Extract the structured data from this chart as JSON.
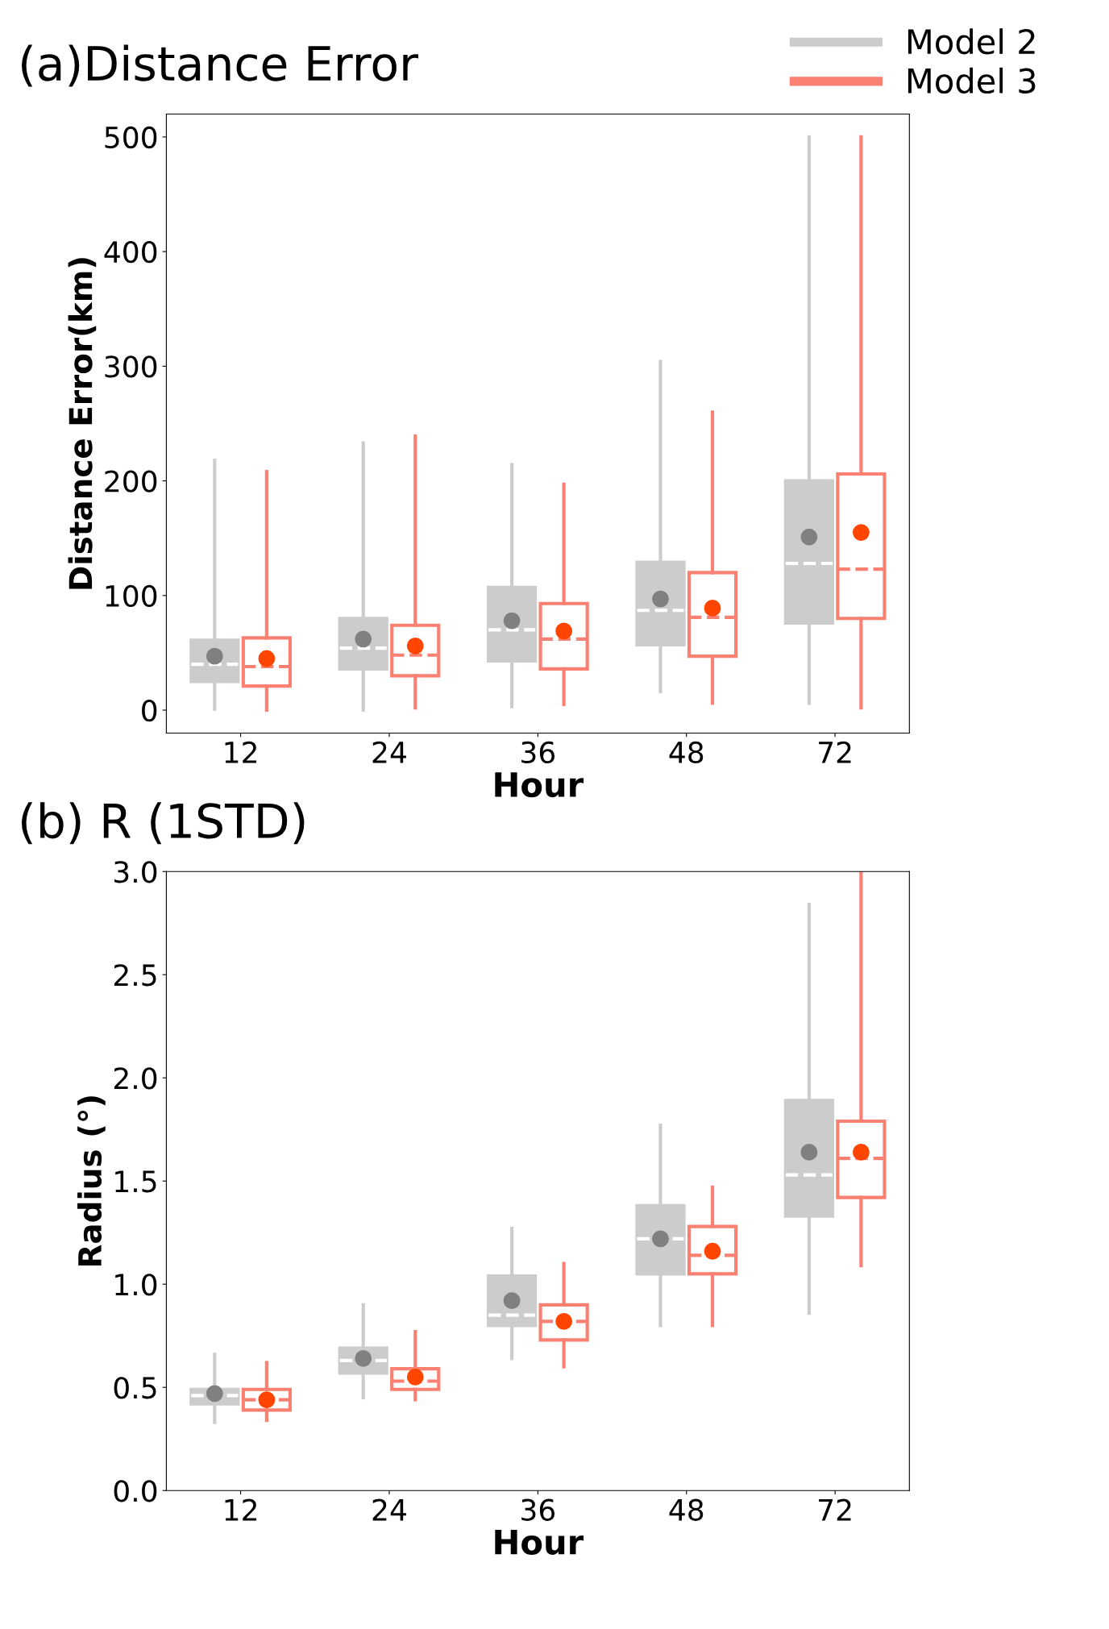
{
  "chart_data": [
    {
      "type": "box",
      "title": "(a)Distance Error",
      "xlabel": "Hour",
      "ylabel": "Distance Error(km)",
      "categories": [
        "12",
        "24",
        "36",
        "48",
        "72"
      ],
      "ylim": [
        -20,
        520
      ],
      "yticks": [
        0,
        100,
        200,
        300,
        400,
        500
      ],
      "legend": "top right",
      "series": [
        {
          "name": "Model 2",
          "color": "#cccccc",
          "boxes": [
            {
              "low": 1,
              "q1": 25,
              "median": 40,
              "q3": 61,
              "high": 218,
              "mean": 47
            },
            {
              "low": 0,
              "q1": 36,
              "median": 54,
              "q3": 80,
              "high": 233,
              "mean": 62
            },
            {
              "low": 3,
              "q1": 43,
              "median": 70,
              "q3": 107,
              "high": 214,
              "mean": 78
            },
            {
              "low": 16,
              "q1": 57,
              "median": 87,
              "q3": 129,
              "high": 304,
              "mean": 97
            },
            {
              "low": 6,
              "q1": 76,
              "median": 128,
              "q3": 200,
              "high": 500,
              "mean": 151
            }
          ]
        },
        {
          "name": "Model 3",
          "color": "#fa8072",
          "boxes": [
            {
              "low": 0,
              "q1": 21,
              "median": 38,
              "q3": 63,
              "high": 208,
              "mean": 45
            },
            {
              "low": 2,
              "q1": 30,
              "median": 48,
              "q3": 74,
              "high": 239,
              "mean": 56
            },
            {
              "low": 5,
              "q1": 36,
              "median": 62,
              "q3": 93,
              "high": 197,
              "mean": 69
            },
            {
              "low": 6,
              "q1": 47,
              "median": 81,
              "q3": 120,
              "high": 260,
              "mean": 89
            },
            {
              "low": 2,
              "q1": 80,
              "median": 123,
              "q3": 206,
              "high": 500,
              "mean": 155
            }
          ]
        }
      ]
    },
    {
      "type": "box",
      "title": "(b) R (1STD)",
      "xlabel": "Hour",
      "ylabel": "Radius (°)",
      "categories": [
        "12",
        "24",
        "36",
        "48",
        "72"
      ],
      "ylim": [
        0,
        3
      ],
      "yticks": [
        {
          "value": 0,
          "label": "0.0"
        },
        0.5,
        {
          "value": 1,
          "label": "1.0"
        },
        1.5,
        {
          "value": 2,
          "label": "2.0"
        },
        2.5,
        {
          "value": 3,
          "label": "3.0"
        }
      ],
      "series": [
        {
          "color": "#cccccc",
          "boxes": [
            {
              "low": 0.33,
              "q1": 0.42,
              "median": 0.46,
              "q3": 0.49,
              "high": 0.66,
              "mean": 0.47
            },
            {
              "low": 0.45,
              "q1": 0.57,
              "median": 0.63,
              "q3": 0.69,
              "high": 0.9,
              "mean": 0.64
            },
            {
              "low": 0.64,
              "q1": 0.8,
              "median": 0.85,
              "q3": 1.04,
              "high": 1.27,
              "mean": 0.92
            },
            {
              "low": 0.8,
              "q1": 1.05,
              "median": 1.22,
              "q3": 1.38,
              "high": 1.77,
              "mean": 1.22
            },
            {
              "low": 0.86,
              "q1": 1.33,
              "median": 1.53,
              "q3": 1.89,
              "high": 2.84,
              "mean": 1.64
            }
          ]
        },
        {
          "color": "#fa8072",
          "boxes": [
            {
              "low": 0.34,
              "q1": 0.39,
              "median": 0.44,
              "q3": 0.49,
              "high": 0.62,
              "mean": 0.44
            },
            {
              "low": 0.44,
              "q1": 0.49,
              "median": 0.53,
              "q3": 0.59,
              "high": 0.77,
              "mean": 0.55
            },
            {
              "low": 0.6,
              "q1": 0.73,
              "median": 0.82,
              "q3": 0.9,
              "high": 1.1,
              "mean": 0.82
            },
            {
              "low": 0.8,
              "q1": 1.05,
              "median": 1.14,
              "q3": 1.28,
              "high": 1.47,
              "mean": 1.16
            },
            {
              "low": 1.09,
              "q1": 1.42,
              "median": 1.61,
              "q3": 1.79,
              "high": 3.0,
              "mean": 1.64
            }
          ]
        }
      ]
    }
  ]
}
